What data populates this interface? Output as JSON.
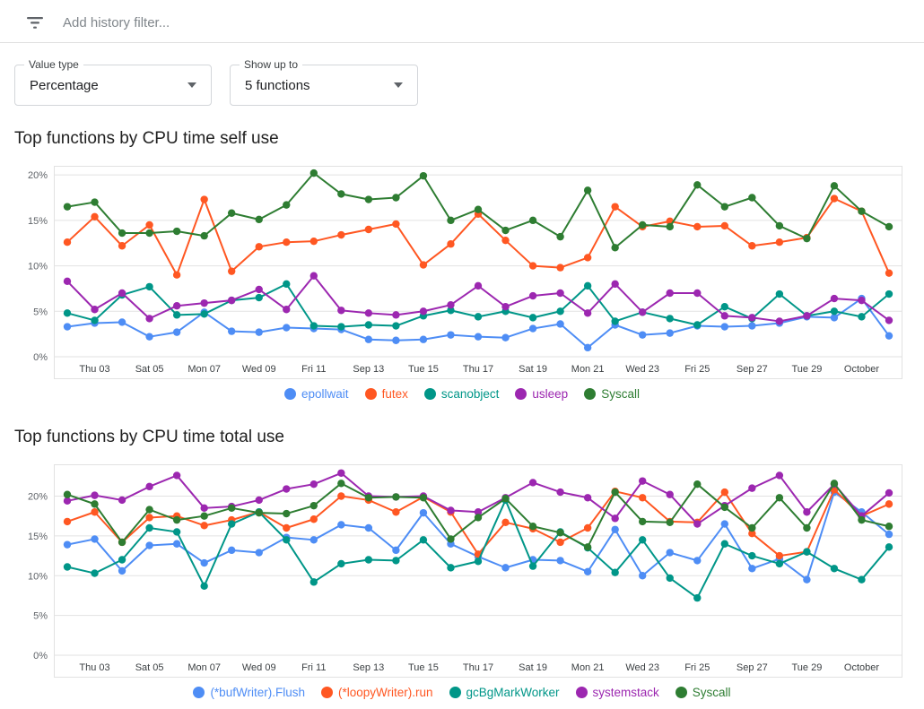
{
  "filter_bar": {
    "icon": "filter-list-icon",
    "placeholder": "Add history filter..."
  },
  "controls": {
    "value_type": {
      "label": "Value type",
      "value": "Percentage"
    },
    "show_up_to": {
      "label": "Show up to",
      "value": "5 functions"
    }
  },
  "chart_data": [
    {
      "type": "line",
      "title": "Top functions by CPU time self use",
      "xlabel": "",
      "ylabel": "",
      "grid": true,
      "legend_position": "bottom",
      "ylim": [
        0,
        21
      ],
      "y_ticks": [
        0,
        5,
        10,
        15,
        20
      ],
      "y_tick_suffix": "%",
      "x_tick_indices": [
        1,
        3,
        5,
        7,
        9,
        11,
        13,
        15,
        17,
        19,
        21,
        23,
        25,
        27,
        29
      ],
      "x_tick_labels": [
        "Thu 03",
        "Sat 05",
        "Mon 07",
        "Wed 09",
        "Fri 11",
        "Sep 13",
        "Tue 15",
        "Thu 17",
        "Sat 19",
        "Mon 21",
        "Wed 23",
        "Fri 25",
        "Sep 27",
        "Tue 29",
        "October"
      ],
      "series": [
        {
          "name": "epollwait",
          "color": "#4e8df5",
          "values": [
            3.3,
            3.7,
            3.8,
            2.2,
            2.7,
            4.9,
            2.8,
            2.7,
            3.2,
            3.1,
            3.0,
            1.9,
            1.8,
            1.9,
            2.4,
            2.2,
            2.1,
            3.1,
            3.6,
            1.0,
            3.5,
            2.4,
            2.6,
            3.4,
            3.3,
            3.4,
            3.7,
            4.4,
            4.3,
            6.4,
            2.3
          ]
        },
        {
          "name": "futex",
          "color": "#ff5722",
          "values": [
            12.6,
            15.4,
            12.2,
            14.5,
            9.0,
            17.3,
            9.4,
            12.1,
            12.6,
            12.7,
            13.4,
            14.0,
            14.6,
            10.1,
            12.4,
            15.7,
            12.8,
            10.0,
            9.8,
            10.9,
            16.5,
            14.3,
            14.9,
            14.3,
            14.4,
            12.2,
            12.6,
            13.1,
            17.4,
            16.0,
            9.2
          ]
        },
        {
          "name": "scanobject",
          "color": "#009688",
          "values": [
            4.8,
            4.0,
            6.8,
            7.7,
            4.6,
            4.7,
            6.2,
            6.5,
            8.0,
            3.4,
            3.3,
            3.5,
            3.4,
            4.5,
            5.1,
            4.4,
            5.0,
            4.3,
            5.0,
            7.8,
            3.9,
            4.9,
            4.2,
            3.5,
            5.5,
            4.2,
            6.9,
            4.5,
            5.0,
            4.4,
            6.9
          ]
        },
        {
          "name": "usleep",
          "color": "#9c27b0",
          "values": [
            8.3,
            5.2,
            7.0,
            4.2,
            5.6,
            5.9,
            6.2,
            7.4,
            5.2,
            8.9,
            5.1,
            4.8,
            4.6,
            5.0,
            5.7,
            7.8,
            5.5,
            6.7,
            7.0,
            4.8,
            8.0,
            4.9,
            7.0,
            7.0,
            4.5,
            4.3,
            3.9,
            4.5,
            6.4,
            6.2,
            4.0
          ]
        },
        {
          "name": "Syscall",
          "color": "#2e7d32",
          "values": [
            16.5,
            17.0,
            13.6,
            13.6,
            13.8,
            13.3,
            15.8,
            15.1,
            16.7,
            20.2,
            17.9,
            17.3,
            17.5,
            19.9,
            15.0,
            16.2,
            13.9,
            15.0,
            13.2,
            18.3,
            12.0,
            14.5,
            14.3,
            18.9,
            16.5,
            17.5,
            14.4,
            13.0,
            18.8,
            16.0,
            14.3
          ]
        }
      ]
    },
    {
      "type": "line",
      "title": "Top functions by CPU time total use",
      "xlabel": "",
      "ylabel": "",
      "grid": true,
      "legend_position": "bottom",
      "ylim": [
        0,
        24
      ],
      "y_ticks": [
        0,
        5,
        10,
        15,
        20
      ],
      "y_tick_suffix": "%",
      "x_tick_indices": [
        1,
        3,
        5,
        7,
        9,
        11,
        13,
        15,
        17,
        19,
        21,
        23,
        25,
        27,
        29
      ],
      "x_tick_labels": [
        "Thu 03",
        "Sat 05",
        "Mon 07",
        "Wed 09",
        "Fri 11",
        "Sep 13",
        "Tue 15",
        "Thu 17",
        "Sat 19",
        "Mon 21",
        "Wed 23",
        "Fri 25",
        "Sep 27",
        "Tue 29",
        "October"
      ],
      "series": [
        {
          "name": "(*bufWriter).Flush",
          "color": "#4e8df5",
          "values": [
            13.9,
            14.6,
            10.6,
            13.8,
            14.0,
            11.6,
            13.2,
            12.9,
            14.8,
            14.5,
            16.4,
            16.0,
            13.2,
            17.9,
            14.0,
            12.4,
            11.0,
            12.0,
            11.9,
            10.5,
            15.8,
            10.0,
            12.9,
            11.9,
            16.5,
            10.9,
            12.1,
            9.5,
            20.5,
            18.0,
            15.2
          ]
        },
        {
          "name": "(*loopyWriter).run",
          "color": "#ff5722",
          "values": [
            16.8,
            18.0,
            14.2,
            17.3,
            17.5,
            16.3,
            17.0,
            18.0,
            16.0,
            17.1,
            20.0,
            19.5,
            18.0,
            19.9,
            18.0,
            12.7,
            16.7,
            15.9,
            14.2,
            16.0,
            20.6,
            19.8,
            16.8,
            16.7,
            20.5,
            15.3,
            12.5,
            13.0,
            20.8,
            17.5,
            19.0
          ]
        },
        {
          "name": "gcBgMarkWorker",
          "color": "#009688",
          "values": [
            11.1,
            10.3,
            12.0,
            16.0,
            15.5,
            8.7,
            16.5,
            18.0,
            14.5,
            9.2,
            11.5,
            12.0,
            11.9,
            14.5,
            11.0,
            11.8,
            19.5,
            11.2,
            15.5,
            13.5,
            10.4,
            14.5,
            9.7,
            7.2,
            14.0,
            12.5,
            11.5,
            13.0,
            10.9,
            9.5,
            13.6
          ]
        },
        {
          "name": "systemstack",
          "color": "#9c27b0",
          "values": [
            19.4,
            20.1,
            19.5,
            21.2,
            22.6,
            18.5,
            18.7,
            19.5,
            20.9,
            21.5,
            22.9,
            20.0,
            19.9,
            20.0,
            18.2,
            18.0,
            19.8,
            21.7,
            20.5,
            19.8,
            17.2,
            21.9,
            20.2,
            16.5,
            18.8,
            21.0,
            22.6,
            18.0,
            21.5,
            17.5,
            20.4
          ]
        },
        {
          "name": "Syscall",
          "color": "#2e7d32",
          "values": [
            20.2,
            19.0,
            14.2,
            18.3,
            17.0,
            17.5,
            18.5,
            17.9,
            17.8,
            18.8,
            21.6,
            19.8,
            19.9,
            19.8,
            14.6,
            17.3,
            19.7,
            16.2,
            15.4,
            13.6,
            20.5,
            16.8,
            16.7,
            21.5,
            18.6,
            16.0,
            19.8,
            16.0,
            21.6,
            17.0,
            16.2
          ]
        }
      ]
    }
  ]
}
